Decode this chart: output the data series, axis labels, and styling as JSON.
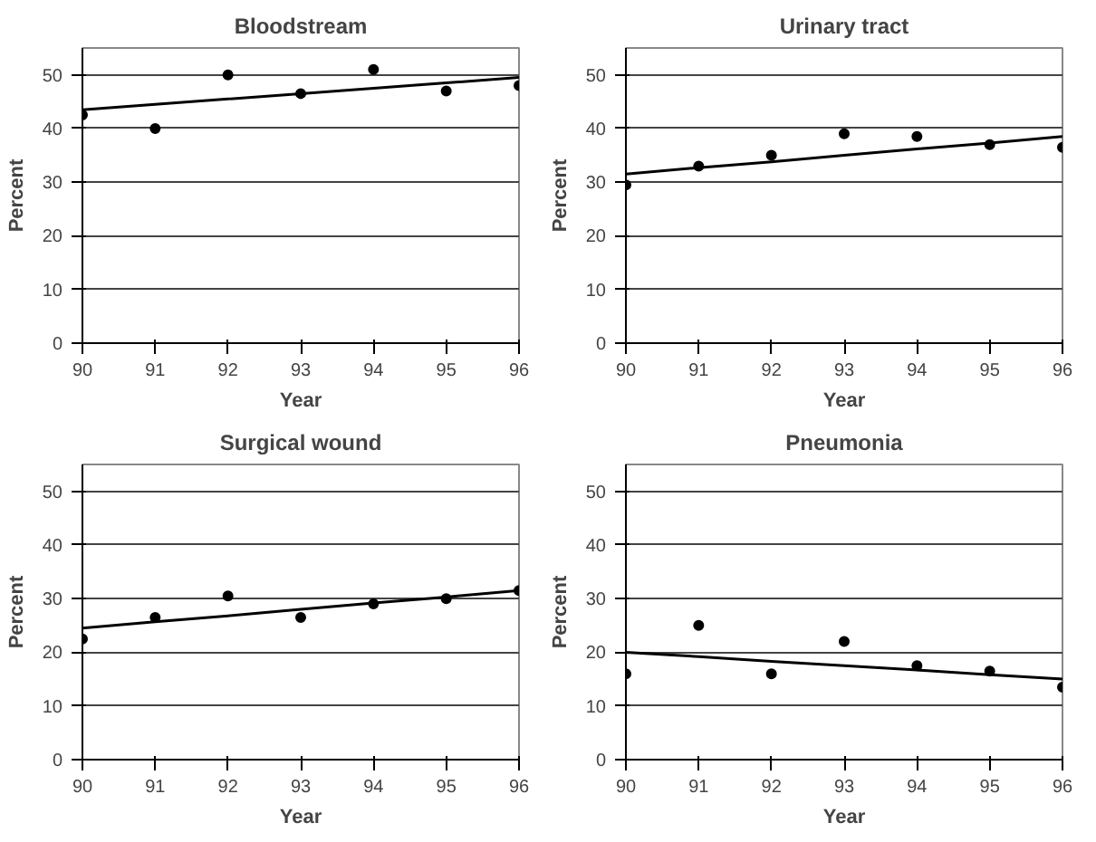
{
  "chart_data": [
    {
      "type": "scatter",
      "title": "Bloodstream",
      "xlabel": "Year",
      "ylabel": "Percent",
      "x": [
        90,
        91,
        92,
        93,
        94,
        95,
        96
      ],
      "xlim": [
        90,
        96
      ],
      "xticks": [
        90,
        91,
        92,
        93,
        94,
        95,
        96
      ],
      "ylim": [
        0,
        55
      ],
      "yticks": [
        0,
        10,
        20,
        30,
        40,
        50
      ],
      "grid": "y",
      "marker": "circle",
      "series": [
        {
          "color": "#000000",
          "values": [
            42.5,
            40,
            50,
            46.5,
            51,
            47,
            48
          ]
        },
        {
          "type": "line",
          "color": "#000000",
          "marker": "none",
          "values": [
            43.5,
            44.5,
            45.5,
            46.5,
            47.5,
            48.5,
            49.5
          ]
        }
      ]
    },
    {
      "type": "scatter",
      "title": "Urinary tract",
      "xlabel": "Year",
      "ylabel": "Percent",
      "x": [
        90,
        91,
        92,
        93,
        94,
        95,
        96
      ],
      "xlim": [
        90,
        96
      ],
      "xticks": [
        90,
        91,
        92,
        93,
        94,
        95,
        96
      ],
      "ylim": [
        0,
        55
      ],
      "yticks": [
        0,
        10,
        20,
        30,
        40,
        50
      ],
      "grid": "y",
      "marker": "circle",
      "series": [
        {
          "color": "#000000",
          "values": [
            29.5,
            33,
            35,
            39,
            38.5,
            37,
            36.5
          ]
        },
        {
          "type": "line",
          "color": "#000000",
          "marker": "none",
          "values": [
            31.5,
            32.7,
            33.8,
            35,
            36.2,
            37.3,
            38.5
          ]
        }
      ]
    },
    {
      "type": "scatter",
      "title": "Surgical wound",
      "xlabel": "Year",
      "ylabel": "Percent",
      "x": [
        90,
        91,
        92,
        93,
        94,
        95,
        96
      ],
      "xlim": [
        90,
        96
      ],
      "xticks": [
        90,
        91,
        92,
        93,
        94,
        95,
        96
      ],
      "ylim": [
        0,
        55
      ],
      "yticks": [
        0,
        10,
        20,
        30,
        40,
        50
      ],
      "grid": "y",
      "marker": "circle",
      "series": [
        {
          "color": "#000000",
          "values": [
            22.5,
            26.5,
            30.5,
            26.5,
            29,
            30,
            31.5
          ]
        },
        {
          "type": "line",
          "color": "#000000",
          "marker": "none",
          "values": [
            24.5,
            25.7,
            26.8,
            28,
            29.2,
            30.3,
            31.5
          ]
        }
      ]
    },
    {
      "type": "scatter",
      "title": "Pneumonia",
      "xlabel": "Year",
      "ylabel": "Percent",
      "x": [
        90,
        91,
        92,
        93,
        94,
        95,
        96
      ],
      "xlim": [
        90,
        96
      ],
      "xticks": [
        90,
        91,
        92,
        93,
        94,
        95,
        96
      ],
      "ylim": [
        0,
        55
      ],
      "yticks": [
        0,
        10,
        20,
        30,
        40,
        50
      ],
      "grid": "y",
      "marker": "circle",
      "series": [
        {
          "color": "#000000",
          "values": [
            16,
            25,
            16,
            22,
            17.5,
            16.5,
            13.5
          ]
        },
        {
          "type": "line",
          "color": "#000000",
          "marker": "none",
          "values": [
            20,
            19.2,
            18.3,
            17.5,
            16.7,
            15.8,
            15
          ]
        }
      ]
    }
  ]
}
